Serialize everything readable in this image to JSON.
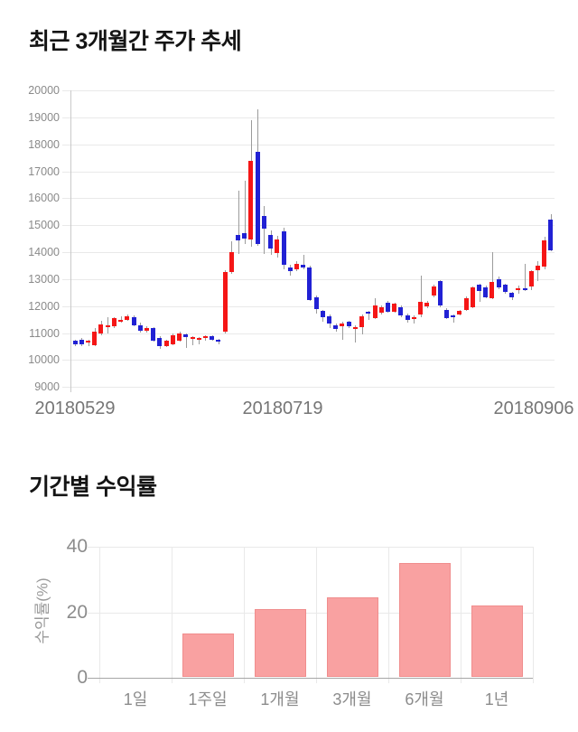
{
  "price_chart_title": "최근 3개월간 주가 추세",
  "returns_chart_title": "기간별 수익률",
  "returns_axis_title": "수익률(%)",
  "colors": {
    "candle_up": "#f51616",
    "candle_down": "#2121d4",
    "candle_wick": "#9b9b9b",
    "bar_fill": "#f9a1a1",
    "bar_border": "#f08d8d",
    "grid": "#e9e9e9",
    "title_text": "#141414",
    "tick_text": "#8c8c8c"
  },
  "chart_data": [
    {
      "type": "candlestick",
      "title": "최근 3개월간 주가 추세",
      "ylim": [
        9000,
        20000
      ],
      "y_ticks": [
        20000,
        19000,
        18000,
        17000,
        16000,
        15000,
        14000,
        13000,
        12000,
        11000,
        10000,
        9000
      ],
      "x_tick_labels": [
        "20180529",
        "20180719",
        "20180906"
      ],
      "grid": true,
      "legend": "none",
      "up_color_meaning": "price rise (red)",
      "down_color_meaning": "price fall (blue)",
      "candles_format": [
        "open",
        "high",
        "low",
        "close"
      ],
      "candles": [
        [
          10700,
          10760,
          10500,
          10570
        ],
        [
          10760,
          10800,
          10520,
          10580
        ],
        [
          10640,
          10740,
          10500,
          10700
        ],
        [
          10540,
          11180,
          10500,
          11060
        ],
        [
          10980,
          11460,
          10930,
          11330
        ],
        [
          11250,
          11580,
          10980,
          11290
        ],
        [
          11260,
          11600,
          11200,
          11560
        ],
        [
          11480,
          11630,
          11380,
          11500
        ],
        [
          11500,
          11680,
          11440,
          11630
        ],
        [
          11600,
          11650,
          11250,
          11300
        ],
        [
          11300,
          11380,
          11020,
          11080
        ],
        [
          11080,
          11250,
          11010,
          11180
        ],
        [
          11180,
          11220,
          10680,
          10730
        ],
        [
          10830,
          10880,
          10420,
          10530
        ],
        [
          10530,
          10760,
          10470,
          10700
        ],
        [
          10580,
          10980,
          10540,
          10930
        ],
        [
          10720,
          11050,
          10670,
          11000
        ],
        [
          10950,
          11000,
          10440,
          10860
        ],
        [
          10800,
          10900,
          10560,
          10860
        ],
        [
          10770,
          10860,
          10580,
          10830
        ],
        [
          10800,
          10920,
          10700,
          10870
        ],
        [
          10870,
          10910,
          10720,
          10760
        ],
        [
          10750,
          10780,
          10570,
          10710
        ],
        [
          11050,
          13330,
          10980,
          13250
        ],
        [
          13250,
          14390,
          13180,
          14000
        ],
        [
          14650,
          16270,
          13940,
          14450
        ],
        [
          14720,
          16660,
          14300,
          14500
        ],
        [
          14460,
          18880,
          14200,
          17390
        ],
        [
          17730,
          19300,
          14250,
          14300
        ],
        [
          15330,
          15700,
          13940,
          14870
        ],
        [
          14650,
          14800,
          13900,
          14130
        ],
        [
          13960,
          14600,
          13800,
          14460
        ],
        [
          14760,
          14900,
          13350,
          13530
        ],
        [
          13440,
          13520,
          13140,
          13290
        ],
        [
          13360,
          13680,
          13280,
          13550
        ],
        [
          13530,
          13900,
          13380,
          13430
        ],
        [
          13440,
          13500,
          12180,
          12240
        ],
        [
          12320,
          12380,
          11730,
          11900
        ],
        [
          11820,
          11870,
          11420,
          11600
        ],
        [
          11620,
          11680,
          11180,
          11340
        ],
        [
          11300,
          11360,
          11050,
          11150
        ],
        [
          11260,
          11420,
          10750,
          11360
        ],
        [
          11410,
          11460,
          11190,
          11240
        ],
        [
          11170,
          11300,
          10650,
          11230
        ],
        [
          11225,
          11680,
          10950,
          11615
        ],
        [
          11790,
          11830,
          11500,
          11740
        ],
        [
          11560,
          12290,
          11510,
          12010
        ],
        [
          11740,
          12010,
          11690,
          11970
        ],
        [
          12130,
          12180,
          11750,
          11800
        ],
        [
          11800,
          12130,
          11750,
          12080
        ],
        [
          11970,
          12020,
          11590,
          11640
        ],
        [
          11670,
          11720,
          11400,
          11490
        ],
        [
          11520,
          11640,
          11360,
          11580
        ],
        [
          11680,
          13130,
          11600,
          12150
        ],
        [
          11980,
          12200,
          11930,
          12120
        ],
        [
          12390,
          12780,
          12340,
          12730
        ],
        [
          12920,
          12970,
          11960,
          12010
        ],
        [
          11860,
          11910,
          11510,
          11560
        ],
        [
          11640,
          11700,
          11400,
          11580
        ],
        [
          11680,
          11860,
          11640,
          11810
        ],
        [
          11860,
          12350,
          11810,
          12300
        ],
        [
          11970,
          12740,
          11920,
          12690
        ],
        [
          12790,
          12830,
          12170,
          12570
        ],
        [
          12710,
          12760,
          12290,
          12340
        ],
        [
          12300,
          13990,
          12250,
          12900
        ],
        [
          13010,
          13110,
          12630,
          12680
        ],
        [
          12790,
          12840,
          12460,
          12510
        ],
        [
          12480,
          12530,
          12240,
          12340
        ],
        [
          12590,
          12750,
          12450,
          12650
        ],
        [
          12650,
          13570,
          12570,
          12600
        ],
        [
          12730,
          13340,
          12580,
          13290
        ],
        [
          13340,
          13680,
          12930,
          13510
        ],
        [
          13460,
          14580,
          13360,
          14430
        ],
        [
          15210,
          15400,
          14050,
          14080
        ]
      ]
    },
    {
      "type": "bar",
      "title": "기간별 수익률",
      "ylabel": "수익률(%)",
      "xlabel": "",
      "ylim": [
        0,
        40
      ],
      "y_ticks": [
        40,
        20,
        0
      ],
      "grid": true,
      "legend": "none",
      "categories": [
        "1일",
        "1주일",
        "1개월",
        "3개월",
        "6개월",
        "1년"
      ],
      "values": [
        0,
        13.5,
        21,
        24.5,
        35,
        22
      ]
    }
  ]
}
